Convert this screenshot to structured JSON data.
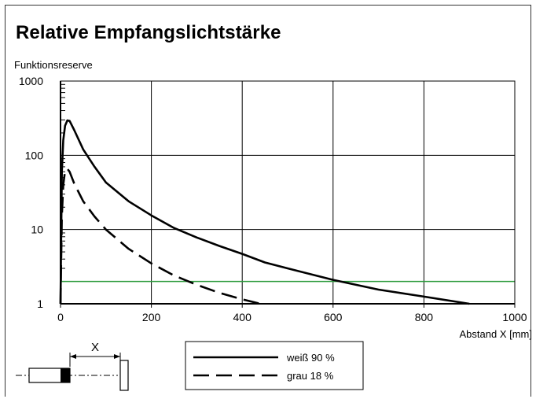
{
  "title": "Relative Empfangslichtstärke",
  "chart_data": {
    "type": "line",
    "ylabel": "Funktionsreserve",
    "xlabel": "Abstand X [mm]",
    "xlim": [
      0,
      1000
    ],
    "ylim": [
      1,
      1000
    ],
    "yscale": "log",
    "x_ticks": [
      0,
      200,
      400,
      600,
      800,
      1000
    ],
    "y_ticks": [
      1,
      10,
      100,
      1000
    ],
    "y_tick_labels": [
      "1",
      "10",
      "100",
      "1000"
    ],
    "grid": true,
    "legend_position": "bottom-center",
    "reference_line": {
      "y": 2,
      "color": "#2a9a3a"
    },
    "series": [
      {
        "name": "weiß 90 %",
        "style": "solid",
        "x": [
          0,
          3,
          6,
          10,
          15,
          20,
          30,
          50,
          75,
          100,
          150,
          200,
          250,
          300,
          350,
          400,
          450,
          500,
          600,
          700,
          800,
          900
        ],
        "y": [
          1,
          60,
          160,
          250,
          295,
          290,
          220,
          120,
          70,
          43,
          24,
          15.5,
          10.5,
          7.8,
          6,
          4.7,
          3.6,
          3,
          2.1,
          1.55,
          1.25,
          1
        ]
      },
      {
        "name": "grau 18 %",
        "style": "dashed",
        "x": [
          0,
          3,
          6,
          10,
          15,
          20,
          30,
          50,
          75,
          100,
          150,
          200,
          250,
          300,
          350,
          400,
          440
        ],
        "y": [
          1,
          15,
          40,
          62,
          66,
          60,
          42,
          24,
          15,
          10,
          5.5,
          3.5,
          2.4,
          1.8,
          1.4,
          1.15,
          1
        ]
      }
    ]
  },
  "legend": {
    "items": [
      "weiß 90 %",
      "grau 18 %"
    ]
  },
  "schematic": {
    "label": "X"
  },
  "colors": {
    "line": "#000000",
    "grid": "#000000",
    "reference": "#2a9a3a"
  }
}
